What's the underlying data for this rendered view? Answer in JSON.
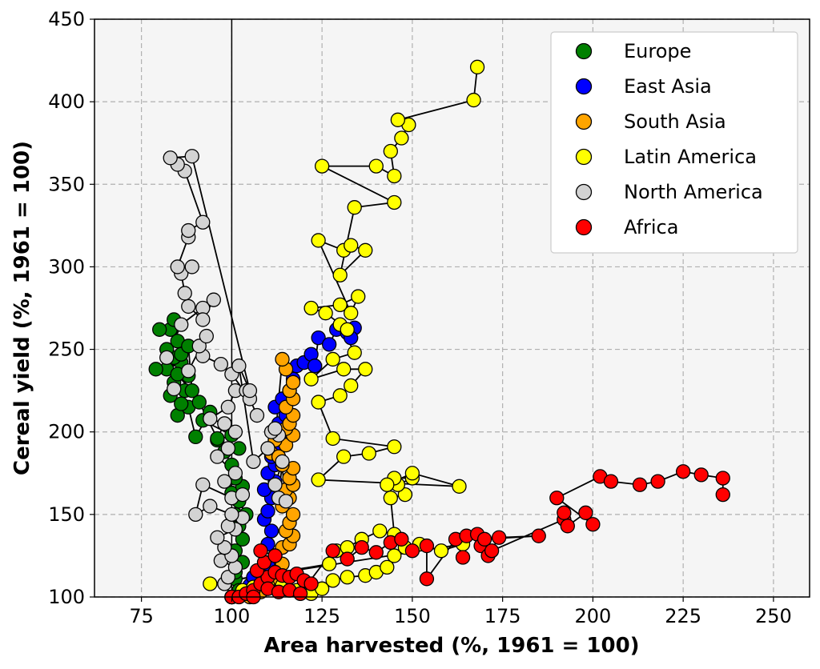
{
  "chart_data": {
    "type": "scatter",
    "title": "",
    "xlabel": "Area harvested (%, 1961 = 100)",
    "ylabel": "Cereal yield (%, 1961 = 100)",
    "xlim": [
      62,
      260
    ],
    "ylim": [
      100,
      450
    ],
    "xticks": [
      75,
      100,
      125,
      150,
      175,
      200,
      225,
      250
    ],
    "yticks": [
      100,
      150,
      200,
      250,
      300,
      350,
      400,
      450
    ],
    "grid": true,
    "reference_line_x": 100,
    "legend_position": "top-right",
    "series": [
      {
        "name": "Europe",
        "color": "#008000",
        "points": [
          [
            100,
            100
          ],
          [
            101,
            111
          ],
          [
            102,
            104
          ],
          [
            101,
            115
          ],
          [
            103,
            121
          ],
          [
            101,
            128
          ],
          [
            103,
            135
          ],
          [
            102,
            143
          ],
          [
            101,
            150
          ],
          [
            104,
            150
          ],
          [
            102,
            158
          ],
          [
            100,
            163
          ],
          [
            103,
            167
          ],
          [
            101,
            172
          ],
          [
            100,
            180
          ],
          [
            98,
            188
          ],
          [
            102,
            190
          ],
          [
            96,
            195
          ],
          [
            100,
            198
          ],
          [
            92,
            207
          ],
          [
            94,
            212
          ],
          [
            90,
            197
          ],
          [
            88,
            215
          ],
          [
            85,
            210
          ],
          [
            86,
            217
          ],
          [
            83,
            222
          ],
          [
            87,
            225
          ],
          [
            84,
            230
          ],
          [
            88,
            234
          ],
          [
            82,
            238
          ],
          [
            86,
            242
          ],
          [
            79,
            238
          ],
          [
            84,
            245
          ],
          [
            82,
            250
          ],
          [
            85,
            255
          ],
          [
            83,
            262
          ],
          [
            80,
            262
          ],
          [
            84,
            268
          ],
          [
            86,
            247
          ],
          [
            88,
            252
          ],
          [
            89,
            225
          ],
          [
            85,
            235
          ],
          [
            91,
            218
          ],
          [
            96,
            196
          ],
          [
            98,
            205
          ]
        ]
      },
      {
        "name": "East Asia",
        "color": "#0000ff",
        "points": [
          [
            100,
            100
          ],
          [
            103,
            103
          ],
          [
            105,
            107
          ],
          [
            106,
            112
          ],
          [
            108,
            116
          ],
          [
            110,
            120
          ],
          [
            112,
            125
          ],
          [
            110,
            132
          ],
          [
            111,
            140
          ],
          [
            109,
            147
          ],
          [
            110,
            152
          ],
          [
            111,
            160
          ],
          [
            109,
            165
          ],
          [
            112,
            170
          ],
          [
            110,
            175
          ],
          [
            112,
            180
          ],
          [
            111,
            185
          ],
          [
            113,
            190
          ],
          [
            112,
            195
          ],
          [
            114,
            200
          ],
          [
            113,
            205
          ],
          [
            115,
            210
          ],
          [
            112,
            215
          ],
          [
            114,
            220
          ],
          [
            116,
            225
          ],
          [
            117,
            232
          ],
          [
            118,
            240
          ],
          [
            120,
            242
          ],
          [
            122,
            247
          ],
          [
            123,
            240
          ],
          [
            124,
            257
          ],
          [
            127,
            253
          ],
          [
            129,
            262
          ],
          [
            132,
            260
          ],
          [
            134,
            263
          ],
          [
            133,
            257
          ]
        ]
      },
      {
        "name": "South Asia",
        "color": "#ffa500",
        "points": [
          [
            105,
            100
          ],
          [
            108,
            103
          ],
          [
            110,
            107
          ],
          [
            112,
            110
          ],
          [
            113,
            115
          ],
          [
            114,
            120
          ],
          [
            112,
            125
          ],
          [
            114,
            130
          ],
          [
            116,
            132
          ],
          [
            117,
            137
          ],
          [
            115,
            140
          ],
          [
            116,
            145
          ],
          [
            117,
            150
          ],
          [
            114,
            155
          ],
          [
            116,
            160
          ],
          [
            115,
            165
          ],
          [
            117,
            168
          ],
          [
            116,
            172
          ],
          [
            117,
            178
          ],
          [
            114,
            180
          ],
          [
            111,
            187
          ],
          [
            113,
            185
          ],
          [
            115,
            192
          ],
          [
            117,
            198
          ],
          [
            115,
            202
          ],
          [
            116,
            205
          ],
          [
            117,
            210
          ],
          [
            115,
            215
          ],
          [
            117,
            220
          ],
          [
            116,
            225
          ],
          [
            117,
            230
          ],
          [
            115,
            238
          ],
          [
            114,
            244
          ],
          [
            112,
            195
          ],
          [
            110,
            190
          ]
        ]
      },
      {
        "name": "Latin America",
        "color": "#ffff00",
        "points": [
          [
            100,
            100
          ],
          [
            103,
            104
          ],
          [
            106,
            106
          ],
          [
            110,
            107
          ],
          [
            114,
            107
          ],
          [
            118,
            104
          ],
          [
            122,
            102
          ],
          [
            125,
            105
          ],
          [
            128,
            110
          ],
          [
            132,
            112
          ],
          [
            137,
            113
          ],
          [
            140,
            115
          ],
          [
            143,
            118
          ],
          [
            145,
            125
          ],
          [
            148,
            130
          ],
          [
            152,
            132
          ],
          [
            158,
            128
          ],
          [
            164,
            132
          ],
          [
            94,
            108
          ],
          [
            127,
            120
          ],
          [
            129,
            128
          ],
          [
            132,
            130
          ],
          [
            136,
            135
          ],
          [
            141,
            140
          ],
          [
            145,
            138
          ],
          [
            144,
            160
          ],
          [
            148,
            162
          ],
          [
            146,
            168
          ],
          [
            150,
            172
          ],
          [
            145,
            172
          ],
          [
            143,
            168
          ],
          [
            150,
            175
          ],
          [
            163,
            167
          ],
          [
            124,
            171
          ],
          [
            131,
            185
          ],
          [
            138,
            187
          ],
          [
            145,
            191
          ],
          [
            128,
            196
          ],
          [
            124,
            218
          ],
          [
            130,
            222
          ],
          [
            133,
            228
          ],
          [
            137,
            238
          ],
          [
            131,
            238
          ],
          [
            122,
            232
          ],
          [
            128,
            244
          ],
          [
            134,
            248
          ],
          [
            130,
            265
          ],
          [
            132,
            262
          ],
          [
            126,
            272
          ],
          [
            122,
            275
          ],
          [
            130,
            277
          ],
          [
            135,
            282
          ],
          [
            133,
            272
          ],
          [
            124,
            316
          ],
          [
            131,
            310
          ],
          [
            133,
            313
          ],
          [
            137,
            310
          ],
          [
            130,
            295
          ],
          [
            134,
            336
          ],
          [
            145,
            339
          ],
          [
            125,
            361
          ],
          [
            140,
            361
          ],
          [
            145,
            355
          ],
          [
            144,
            370
          ],
          [
            147,
            378
          ],
          [
            149,
            386
          ],
          [
            146,
            389
          ],
          [
            167,
            401
          ],
          [
            168,
            421
          ]
        ]
      },
      {
        "name": "North America",
        "color": "#d3d3d3",
        "points": [
          [
            100,
            100
          ],
          [
            98,
            108
          ],
          [
            99,
            112
          ],
          [
            101,
            118
          ],
          [
            97,
            122
          ],
          [
            100,
            125
          ],
          [
            98,
            130
          ],
          [
            96,
            136
          ],
          [
            101,
            141
          ],
          [
            99,
            143
          ],
          [
            103,
            148
          ],
          [
            100,
            150
          ],
          [
            94,
            155
          ],
          [
            90,
            150
          ],
          [
            92,
            168
          ],
          [
            100,
            160
          ],
          [
            103,
            162
          ],
          [
            98,
            170
          ],
          [
            101,
            175
          ],
          [
            96,
            185
          ],
          [
            99,
            190
          ],
          [
            101,
            200
          ],
          [
            98,
            205
          ],
          [
            94,
            208
          ],
          [
            99,
            215
          ],
          [
            101,
            225
          ],
          [
            104,
            225
          ],
          [
            107,
            210
          ],
          [
            105,
            220
          ],
          [
            100,
            235
          ],
          [
            97,
            241
          ],
          [
            92,
            246
          ],
          [
            91,
            252
          ],
          [
            93,
            258
          ],
          [
            88,
            237
          ],
          [
            84,
            226
          ],
          [
            82,
            245
          ],
          [
            86,
            265
          ],
          [
            92,
            275
          ],
          [
            95,
            280
          ],
          [
            92,
            268
          ],
          [
            88,
            276
          ],
          [
            87,
            284
          ],
          [
            86,
            296
          ],
          [
            89,
            300
          ],
          [
            85,
            300
          ],
          [
            88,
            318
          ],
          [
            88,
            322
          ],
          [
            92,
            327
          ],
          [
            87,
            358
          ],
          [
            85,
            362
          ],
          [
            83,
            366
          ],
          [
            89,
            367
          ],
          [
            105,
            225
          ],
          [
            102,
            240
          ],
          [
            106,
            182
          ],
          [
            110,
            190
          ],
          [
            112,
            168
          ],
          [
            114,
            182
          ],
          [
            113,
            160
          ],
          [
            115,
            158
          ],
          [
            113,
            198
          ],
          [
            111,
            200
          ],
          [
            112,
            202
          ]
        ]
      },
      {
        "name": "Africa",
        "color": "#ff0000",
        "points": [
          [
            100,
            100
          ],
          [
            102,
            100
          ],
          [
            104,
            102
          ],
          [
            106,
            104
          ],
          [
            108,
            108
          ],
          [
            110,
            112
          ],
          [
            112,
            115
          ],
          [
            114,
            113
          ],
          [
            116,
            112
          ],
          [
            118,
            114
          ],
          [
            120,
            110
          ],
          [
            122,
            108
          ],
          [
            107,
            116
          ],
          [
            109,
            121
          ],
          [
            112,
            125
          ],
          [
            108,
            128
          ],
          [
            110,
            105
          ],
          [
            113,
            103
          ],
          [
            106,
            100
          ],
          [
            116,
            104
          ],
          [
            119,
            102
          ],
          [
            128,
            128
          ],
          [
            132,
            123
          ],
          [
            136,
            130
          ],
          [
            140,
            127
          ],
          [
            144,
            133
          ],
          [
            147,
            135
          ],
          [
            150,
            128
          ],
          [
            154,
            131
          ],
          [
            154,
            111
          ],
          [
            162,
            135
          ],
          [
            164,
            124
          ],
          [
            165,
            137
          ],
          [
            168,
            138
          ],
          [
            169,
            131
          ],
          [
            171,
            125
          ],
          [
            174,
            136
          ],
          [
            185,
            137
          ],
          [
            170,
            135
          ],
          [
            172,
            128
          ],
          [
            192,
            147
          ],
          [
            192,
            151
          ],
          [
            193,
            143
          ],
          [
            198,
            151
          ],
          [
            200,
            144
          ],
          [
            190,
            160
          ],
          [
            202,
            173
          ],
          [
            205,
            170
          ],
          [
            213,
            168
          ],
          [
            218,
            170
          ],
          [
            225,
            176
          ],
          [
            230,
            174
          ],
          [
            236,
            172
          ],
          [
            236,
            162
          ]
        ]
      }
    ],
    "connect_points": true
  }
}
